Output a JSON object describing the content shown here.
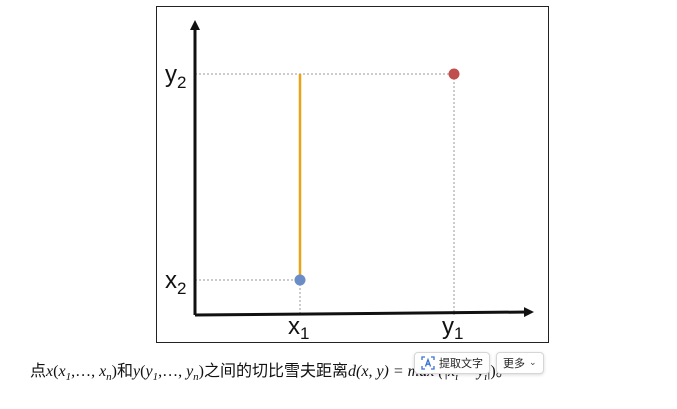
{
  "diagram": {
    "labels": {
      "y2": "y",
      "y2_sub": "2",
      "x2": "x",
      "x2_sub": "2",
      "x1": "x",
      "x1_sub": "1",
      "y1": "y",
      "y1_sub": "1"
    },
    "colors": {
      "axis": "#111111",
      "guide": "#999999",
      "segment": "#e8a317",
      "point_red": "#c0504d",
      "point_blue": "#6a8cc7"
    }
  },
  "caption": {
    "prefix": "点",
    "x": "x",
    "x_open": "(",
    "x_1": "x",
    "x_1_sub": "1",
    "x_sep": ",…, ",
    "x_n": "x",
    "x_n_sub": "n",
    "x_close": ")",
    "and": "和",
    "y": "y",
    "y_open": "(",
    "y_1": "y",
    "y_1_sub": "1",
    "y_sep": ",…, ",
    "y_n": "y",
    "y_n_sub": "n",
    "y_close": ")",
    "middle": "之间的切比雪夫距离",
    "formula_tail": "d(x, y) = max (|x",
    "formula_i": "i",
    "formula_minus": " − y",
    "formula_i2": "i",
    "formula_end": "|)。"
  },
  "toolbar": {
    "extract_text_label": "提取文字",
    "more_label": "更多",
    "more_chevron": "⌄"
  }
}
